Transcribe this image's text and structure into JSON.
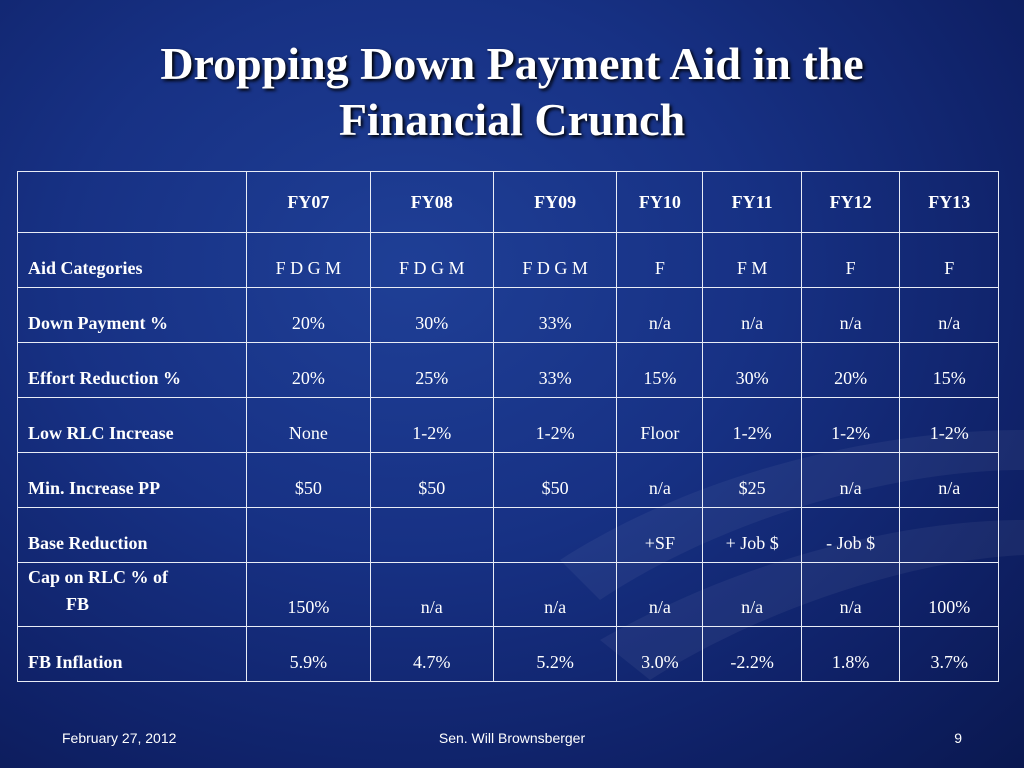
{
  "slide": {
    "title_line1": "Dropping Down Payment Aid in the",
    "title_line2": "Financial Crunch"
  },
  "table": {
    "headers": [
      "",
      "FY07",
      "FY08",
      "FY09",
      "FY10",
      "FY11",
      "FY12",
      "FY13"
    ],
    "rows": [
      {
        "label": "Aid Categories",
        "cells": [
          "F D G M",
          "F D G M",
          "F D G M",
          "F",
          "F M",
          "F",
          "F"
        ]
      },
      {
        "label": "Down Payment %",
        "cells": [
          "20%",
          "30%",
          "33%",
          "n/a",
          "n/a",
          "n/a",
          "n/a"
        ]
      },
      {
        "label": "Effort Reduction %",
        "cells": [
          "20%",
          "25%",
          "33%",
          "15%",
          "30%",
          "20%",
          "15%"
        ]
      },
      {
        "label": "Low RLC Increase",
        "cells": [
          "None",
          "1-2%",
          "1-2%",
          "Floor",
          "1-2%",
          "1-2%",
          "1-2%"
        ]
      },
      {
        "label": "Min. Increase PP",
        "cells": [
          "$50",
          "$50",
          "$50",
          "n/a",
          "$25",
          "n/a",
          "n/a"
        ]
      },
      {
        "label": "Base Reduction",
        "cells": [
          "",
          "",
          "",
          "+SF",
          "+ Job $",
          "- Job $",
          ""
        ]
      },
      {
        "label_line1": "Cap on RLC % of",
        "label_line2": "FB",
        "cells": [
          "150%",
          "n/a",
          "n/a",
          "n/a",
          "n/a",
          "n/a",
          "100%"
        ]
      },
      {
        "label": "FB Inflation",
        "cells": [
          "5.9%",
          "4.7%",
          "5.2%",
          "3.0%",
          "-2.2%",
          "1.8%",
          "3.7%"
        ]
      }
    ]
  },
  "footer": {
    "date": "February 27, 2012",
    "author": "Sen. Will Brownsberger",
    "page": "9"
  },
  "colors": {
    "background": "#173184",
    "text": "#ffffff",
    "grid": "#e8ecf6"
  }
}
